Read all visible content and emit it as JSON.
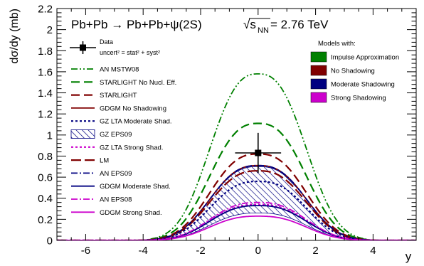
{
  "chart_data": {
    "type": "line",
    "title": "Pb+Pb → Pb+Pb+ψ(2S)",
    "energy": {
      "prefix": "√s",
      "subscript": "NN",
      "suffix": " = 2.76 TeV"
    },
    "xlabel": "y",
    "ylabel": "dσ/dy (mb)",
    "xlim": [
      -7,
      5.5
    ],
    "ylim": [
      0,
      2.2
    ],
    "xticks": [
      -6,
      -4,
      -2,
      0,
      2,
      4
    ],
    "xtick_labels": [
      "-6",
      "-4",
      "-2",
      "0",
      "2",
      "4"
    ],
    "yticks": [
      0,
      0.2,
      0.4,
      0.6,
      0.8,
      1,
      1.2,
      1.4,
      1.6,
      1.8,
      2,
      2.2
    ],
    "ytick_labels": [
      "0",
      "0.2",
      "0.4",
      "0.6",
      "0.8",
      "1",
      "1.2",
      "1.4",
      "1.6",
      "1.8",
      "2",
      "2.2"
    ],
    "grid": false,
    "data_point": {
      "label": "Data",
      "uncertainty_label": "uncert² = stat² + syst²",
      "x": 0.0,
      "x_range": [
        -0.8,
        0.8
      ],
      "y": 0.83,
      "y_low": 0.64,
      "y_high": 1.02,
      "color": "#000000"
    },
    "series": [
      {
        "name": "AN MSTW08",
        "model": "Impulse Approximation",
        "color": "#008000",
        "dash": "9,3,2,3,2,3",
        "width": 1.8,
        "peak": 1.58,
        "fall": [
          1.6,
          3.9,
          4.1
        ],
        "end": 0.0
      },
      {
        "name": "STARLIGHT No Nucl. Eff.",
        "model": "Impulse Approximation",
        "color": "#008000",
        "dash": "12,6",
        "width": 2.2,
        "peak": 1.11,
        "fall": [
          1.6,
          3.9,
          4.1
        ],
        "end": 0.0
      },
      {
        "name": "STARLIGHT",
        "model": "No Shadowing",
        "color": "#800000",
        "dash": "12,6",
        "width": 2.2,
        "peak": 0.82,
        "fall": [
          1.6,
          3.9,
          4.1
        ],
        "end": 0.0
      },
      {
        "name": "GDGM No Shadowing",
        "model": "No Shadowing",
        "color": "#800000",
        "dash": "",
        "width": 1.8,
        "peak": 0.71,
        "fall": [
          1.6,
          3.9,
          4.1
        ],
        "end": 0.0
      },
      {
        "name": "GZ LTA Moderate Shad.",
        "model": "Moderate Shadowing",
        "color": "#000080",
        "dash": "3,3",
        "width": 2.2,
        "peak": 0.56,
        "fall": [
          1.6,
          3.9,
          4.1
        ],
        "end": 0.0
      },
      {
        "name": "GZ LTA Strong Shad.",
        "model": "Strong Shadowing",
        "color": "#cc00cc",
        "dash": "3,3",
        "width": 2.2,
        "peak": 0.34,
        "fall": [
          1.6,
          3.9,
          4.1
        ],
        "end": 0.0
      },
      {
        "name": "LM",
        "model": "No Shadowing",
        "color": "#800000",
        "dash": "14,5",
        "width": 2.2,
        "peak": 0.66,
        "fall": [
          1.6,
          3.9,
          4.1
        ],
        "end": 0.0
      },
      {
        "name": "AN EPS09",
        "model": "Moderate Shadowing",
        "color": "#000080",
        "dash": "9,3,2,3",
        "width": 1.8,
        "peak": 0.71,
        "fall": [
          1.6,
          3.9,
          4.1
        ],
        "end": 0.0
      },
      {
        "name": "GDGM Moderate Shad.",
        "model": "Moderate Shadowing",
        "color": "#000080",
        "dash": "",
        "width": 1.8,
        "peak": 0.33,
        "fall": [
          1.6,
          3.9,
          4.1
        ],
        "end": 0.0
      },
      {
        "name": "AN EPS08",
        "model": "Strong Shadowing",
        "color": "#cc00cc",
        "dash": "9,3,2,3",
        "width": 1.8,
        "peak": 0.36,
        "fall": [
          1.6,
          3.9,
          4.1
        ],
        "end": 0.0
      },
      {
        "name": "GDGM Strong Shad.",
        "model": "Strong Shadowing",
        "color": "#cc00cc",
        "dash": "",
        "width": 1.8,
        "peak": 0.23,
        "fall": [
          1.6,
          3.9,
          4.1
        ],
        "end": 0.0
      }
    ],
    "band": {
      "name": "GZ EPS09",
      "model": "Moderate Shadowing",
      "color": "#000080",
      "upper_peak": 0.7,
      "lower_peak": 0.26
    },
    "legend_order": [
      "AN MSTW08",
      "STARLIGHT No Nucl. Eff.",
      "STARLIGHT",
      "GDGM No Shadowing",
      "GZ LTA Moderate Shad.",
      "GZ EPS09",
      "GZ LTA Strong Shad.",
      "LM",
      "AN EPS09",
      "GDGM Moderate Shad.",
      "AN EPS08",
      "GDGM Strong Shad."
    ],
    "legend_placement": "left",
    "models_legend": {
      "title": "Models with:",
      "placement": "top-right",
      "entries": [
        {
          "label": "Impulse Approximation",
          "color": "#008000"
        },
        {
          "label": "No Shadowing",
          "color": "#800000"
        },
        {
          "label": "Moderate Shadowing",
          "color": "#000080"
        },
        {
          "label": "Strong Shadowing",
          "color": "#cc00cc"
        }
      ]
    }
  }
}
